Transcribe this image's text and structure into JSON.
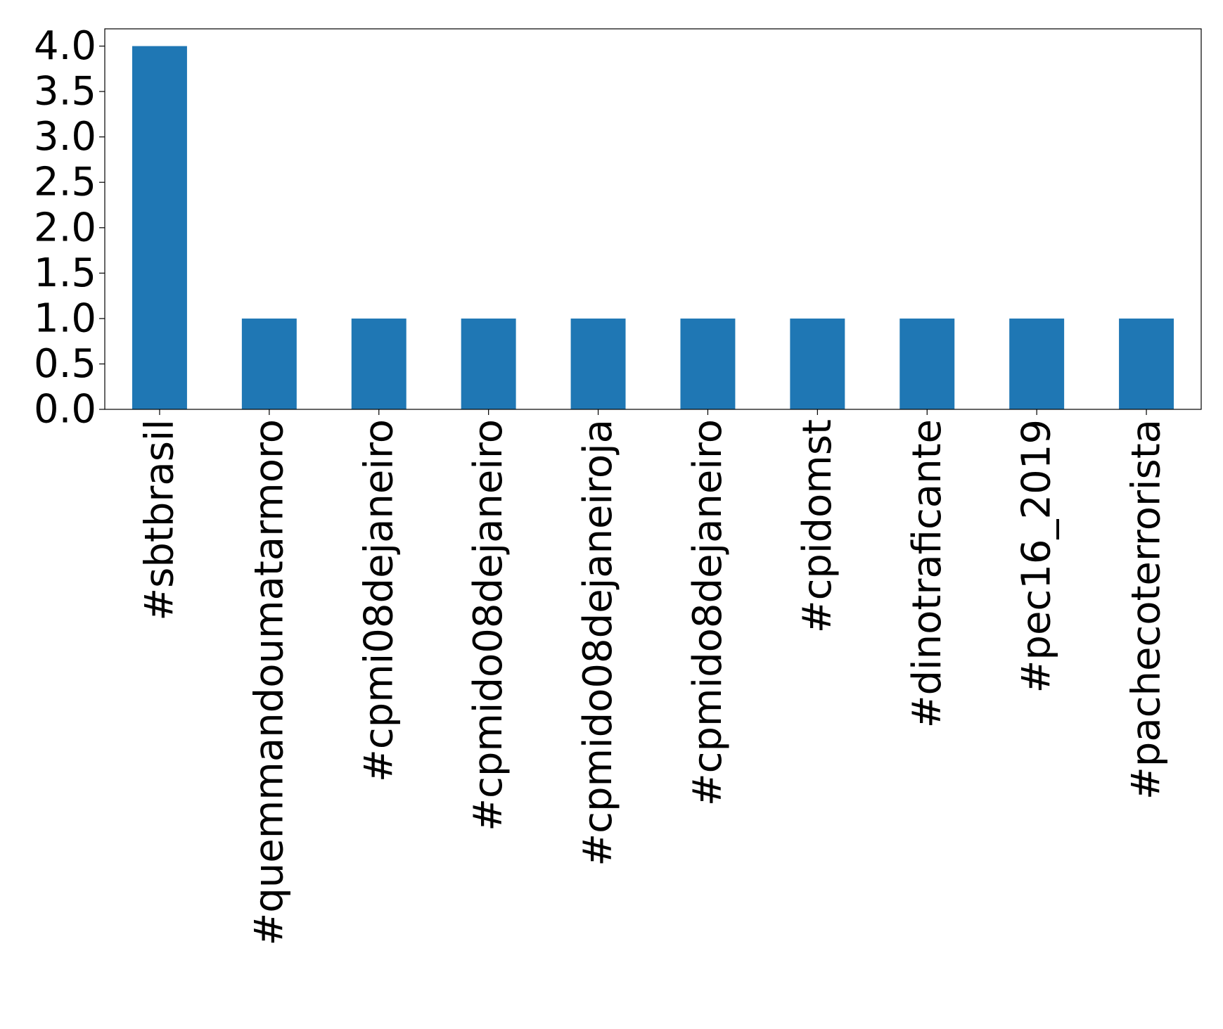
{
  "chart_data": {
    "type": "bar",
    "categories": [
      "#sbtbrasil",
      "#quemmandoumatarmoro",
      "#cpmi08dejaneiro",
      "#cpmido08dejaneiro",
      "#cpmido08dejaneiroja",
      "#cpmido8dejaneiro",
      "#cpidomst",
      "#dinotraficante",
      "#pec16_2019",
      "#pachecoterrorista"
    ],
    "values": [
      4,
      1,
      1,
      1,
      1,
      1,
      1,
      1,
      1,
      1
    ],
    "color": "#1f77b4",
    "ylim": [
      0,
      4.19
    ],
    "yticks": [
      {
        "value": 0,
        "label": "0.0"
      },
      {
        "value": 0.5,
        "label": "0.5"
      },
      {
        "value": 1,
        "label": "1.0"
      },
      {
        "value": 1.5,
        "label": "1.5"
      },
      {
        "value": 2,
        "label": "2.0"
      },
      {
        "value": 2.5,
        "label": "2.5"
      },
      {
        "value": 3,
        "label": "3.0"
      },
      {
        "value": 3.5,
        "label": "3.5"
      },
      {
        "value": 4,
        "label": "4.0"
      }
    ],
    "grid": false
  }
}
